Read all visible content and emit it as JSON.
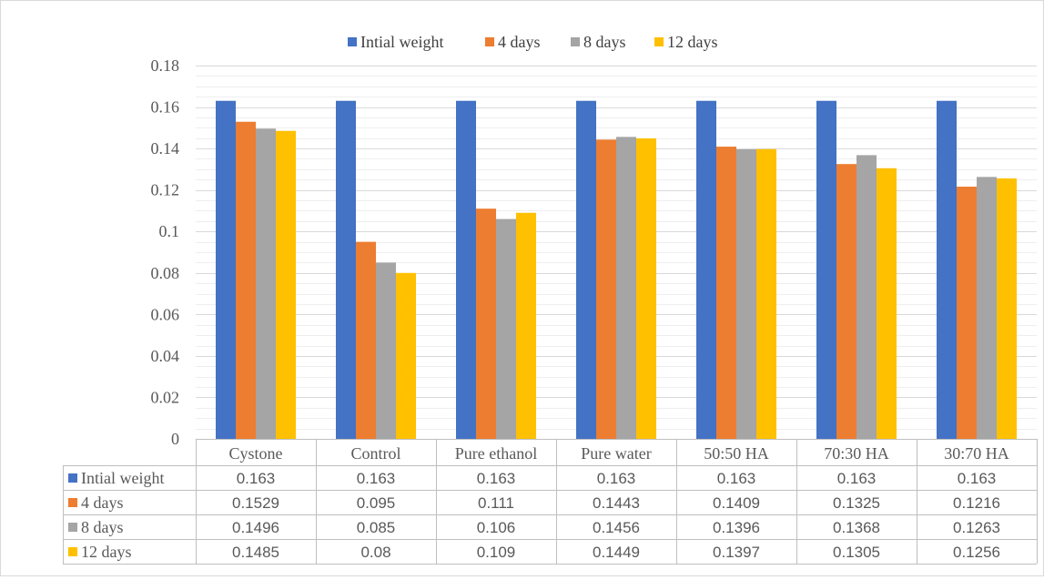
{
  "chart_data": {
    "type": "bar",
    "title": "",
    "xlabel": "",
    "ylabel": "",
    "ylim": [
      0,
      0.18
    ],
    "yticks": [
      "0",
      "0.02",
      "0.04",
      "0.06",
      "0.08",
      "0.1",
      "0.12",
      "0.14",
      "0.16",
      "0.18"
    ],
    "grid": true,
    "legend_position": "top",
    "data_table": true,
    "categories": [
      "Cystone",
      "Control",
      "Pure ethanol",
      "Pure water",
      "50:50 HA",
      "70:30 HA",
      "30:70 HA"
    ],
    "series": [
      {
        "name": "Intial weight",
        "color": "#4472c4",
        "values": [
          0.163,
          0.163,
          0.163,
          0.163,
          0.163,
          0.163,
          0.163
        ],
        "labels": [
          "0.163",
          "0.163",
          "0.163",
          "0.163",
          "0.163",
          "0.163",
          "0.163"
        ]
      },
      {
        "name": "4 days",
        "color": "#ed7d31",
        "values": [
          0.1529,
          0.095,
          0.111,
          0.1443,
          0.1409,
          0.1325,
          0.1216
        ],
        "labels": [
          "0.1529",
          "0.095",
          "0.111",
          "0.1443",
          "0.1409",
          "0.1325",
          "0.1216"
        ]
      },
      {
        "name": "8 days",
        "color": "#a5a5a5",
        "values": [
          0.1496,
          0.085,
          0.106,
          0.1456,
          0.1396,
          0.1368,
          0.1263
        ],
        "labels": [
          "0.1496",
          "0.085",
          "0.106",
          "0.1456",
          "0.1396",
          "0.1368",
          "0.1263"
        ]
      },
      {
        "name": "12 days",
        "color": "#ffc000",
        "values": [
          0.1485,
          0.08,
          0.109,
          0.1449,
          0.1397,
          0.1305,
          0.1256
        ],
        "labels": [
          "0.1485",
          "0.08",
          "0.109",
          "0.1449",
          "0.1397",
          "0.1305",
          "0.1256"
        ]
      }
    ]
  }
}
